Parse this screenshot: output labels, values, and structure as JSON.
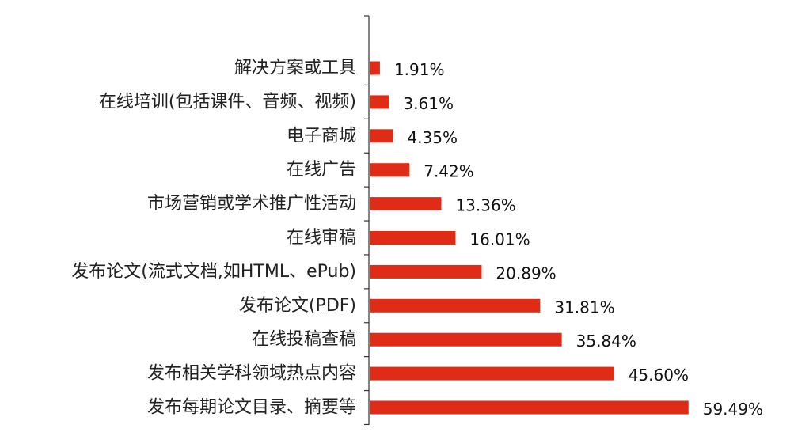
{
  "chart_data": {
    "type": "bar",
    "orientation": "horizontal",
    "title": "",
    "xlabel": "",
    "ylabel": "",
    "grid": false,
    "bar_color": "#e02b17",
    "categories": [
      "解决方案或工具",
      "在线培训(包括课件、音频、视频)",
      "电子商城",
      "在线广告",
      "市场营销或学术推广性活动",
      "在线审稿",
      "发布论文(流式文档,如HTML、ePub)",
      "发布论文(PDF)",
      "在线投稿查稿",
      "发布相关学科领域热点内容",
      "发布每期论文目录、摘要等"
    ],
    "values": [
      1.91,
      3.61,
      4.35,
      7.42,
      13.36,
      16.01,
      20.89,
      31.81,
      35.84,
      45.6,
      59.49
    ],
    "value_labels": [
      "1.91%",
      "3.61%",
      "4.35%",
      "7.42%",
      "13.36%",
      "16.01%",
      "20.89%",
      "31.81%",
      "35.84%",
      "45.60%",
      "59.49%"
    ]
  }
}
